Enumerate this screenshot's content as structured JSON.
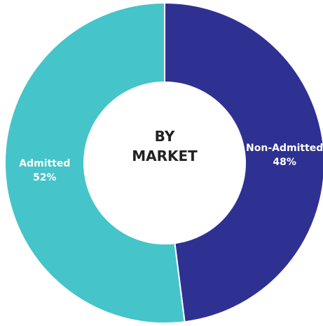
{
  "chart_data": {
    "type": "donut",
    "title": "BY MARKET",
    "categories": [
      "Non-Admitted",
      "Admitted"
    ],
    "values": [
      48,
      52
    ],
    "value_labels": [
      "48%",
      "52%"
    ],
    "colors": [
      "#2e3192",
      "#45c4c9"
    ]
  }
}
